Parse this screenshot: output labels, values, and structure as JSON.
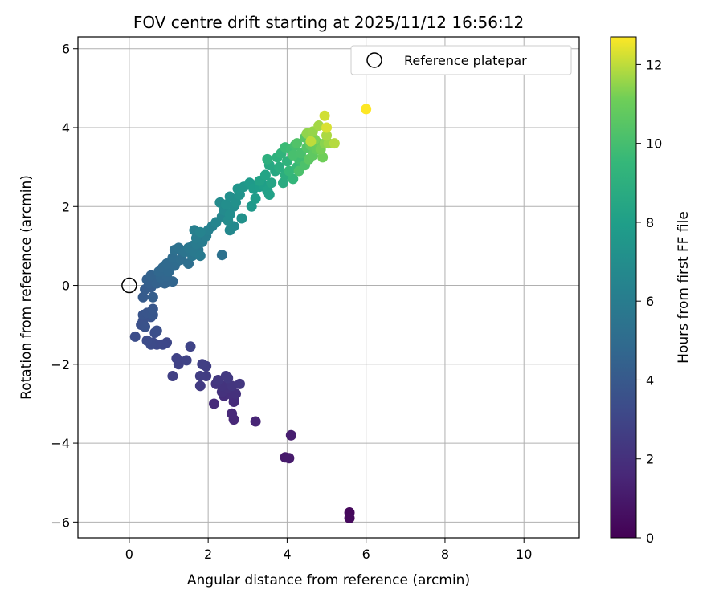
{
  "chart_data": {
    "type": "scatter",
    "title": "FOV centre drift starting at 2025/11/12 16:56:12",
    "xlabel": "Angular distance from reference (arcmin)",
    "ylabel": "Rotation from reference (arcmin)",
    "xlim": [
      -1.3,
      11.4
    ],
    "ylim": [
      -6.4,
      6.3
    ],
    "xticks": [
      0,
      2,
      4,
      6,
      8,
      10
    ],
    "yticks": [
      -6,
      -4,
      -2,
      0,
      2,
      4,
      6
    ],
    "grid": true,
    "legend": {
      "placement": "top-right",
      "entries": [
        "Reference platepar"
      ]
    },
    "reference_point": {
      "x": 0,
      "y": 0,
      "name": "Reference platepar"
    },
    "colorbar": {
      "label": "Hours from first FF file",
      "colormap": "viridis",
      "range": [
        0,
        12.7
      ],
      "ticks": [
        0,
        2,
        4,
        6,
        8,
        10,
        12
      ]
    },
    "series": [
      {
        "points": [
          [
            5.58,
            -5.76,
            0.3
          ],
          [
            5.58,
            -5.9,
            0.35
          ],
          [
            3.95,
            -4.36,
            1.0
          ],
          [
            4.05,
            -4.38,
            1.05
          ],
          [
            4.1,
            -3.8,
            1.2
          ],
          [
            3.2,
            -3.45,
            1.5
          ],
          [
            2.65,
            -3.4,
            1.6
          ],
          [
            2.6,
            -3.25,
            1.65
          ],
          [
            2.15,
            -3.0,
            1.75
          ],
          [
            2.65,
            -2.95,
            1.8
          ],
          [
            2.65,
            -2.85,
            1.85
          ],
          [
            2.4,
            -2.8,
            1.9
          ],
          [
            2.55,
            -2.75,
            1.95
          ],
          [
            2.7,
            -2.75,
            2.0
          ],
          [
            2.35,
            -2.7,
            2.05
          ],
          [
            2.5,
            -2.6,
            2.1
          ],
          [
            2.35,
            -2.55,
            2.15
          ],
          [
            2.2,
            -2.5,
            2.2
          ],
          [
            2.6,
            -2.55,
            2.25
          ],
          [
            2.8,
            -2.5,
            2.3
          ],
          [
            2.25,
            -2.4,
            2.35
          ],
          [
            2.5,
            -2.35,
            2.4
          ],
          [
            2.45,
            -2.3,
            2.45
          ],
          [
            1.8,
            -2.55,
            2.5
          ],
          [
            1.95,
            -2.3,
            2.55
          ],
          [
            1.8,
            -2.3,
            2.6
          ],
          [
            1.95,
            -2.05,
            2.65
          ],
          [
            1.85,
            -2.0,
            2.7
          ],
          [
            1.1,
            -2.3,
            2.75
          ],
          [
            1.25,
            -2.0,
            2.8
          ],
          [
            1.2,
            -1.85,
            2.85
          ],
          [
            1.45,
            -1.9,
            2.9
          ],
          [
            1.55,
            -1.55,
            2.95
          ],
          [
            0.95,
            -1.45,
            3.1
          ],
          [
            0.85,
            -1.5,
            3.15
          ],
          [
            0.7,
            -1.5,
            3.2
          ],
          [
            0.6,
            -1.45,
            3.25
          ],
          [
            0.55,
            -1.5,
            3.3
          ],
          [
            0.45,
            -1.4,
            3.35
          ],
          [
            0.15,
            -1.3,
            3.4
          ],
          [
            0.65,
            -1.2,
            3.45
          ],
          [
            0.7,
            -1.15,
            3.5
          ],
          [
            0.3,
            -1.0,
            3.55
          ],
          [
            0.35,
            -0.9,
            3.6
          ],
          [
            0.4,
            -1.05,
            3.65
          ],
          [
            0.55,
            -0.8,
            3.7
          ],
          [
            0.35,
            -0.75,
            3.75
          ],
          [
            0.45,
            -0.7,
            3.8
          ],
          [
            0.6,
            -0.75,
            3.85
          ],
          [
            0.6,
            -0.6,
            3.9
          ],
          [
            0.35,
            -0.3,
            4.1
          ],
          [
            0.4,
            -0.1,
            4.15
          ],
          [
            0.55,
            -0.05,
            4.2
          ],
          [
            0.6,
            -0.3,
            4.25
          ],
          [
            0.5,
            0.05,
            4.3
          ],
          [
            0.45,
            0.15,
            4.35
          ],
          [
            0.65,
            0.1,
            4.4
          ],
          [
            0.7,
            0.05,
            4.45
          ],
          [
            0.55,
            0.25,
            4.5
          ],
          [
            0.9,
            0.05,
            4.55
          ],
          [
            1.1,
            0.1,
            4.6
          ],
          [
            0.8,
            0.2,
            4.65
          ],
          [
            0.95,
            0.25,
            4.7
          ],
          [
            0.75,
            0.35,
            4.75
          ],
          [
            0.85,
            0.45,
            4.8
          ],
          [
            1.0,
            0.35,
            4.85
          ],
          [
            0.95,
            0.55,
            4.9
          ],
          [
            1.15,
            0.5,
            4.95
          ],
          [
            1.2,
            0.6,
            5.0
          ],
          [
            1.1,
            0.7,
            5.05
          ],
          [
            1.3,
            0.65,
            5.1
          ],
          [
            1.35,
            0.8,
            5.15
          ],
          [
            1.5,
            0.55,
            5.2
          ],
          [
            1.15,
            0.9,
            5.25
          ],
          [
            2.35,
            0.77,
            5.3
          ],
          [
            1.25,
            0.95,
            5.4
          ],
          [
            1.4,
            0.85,
            5.5
          ],
          [
            1.6,
            0.75,
            5.6
          ],
          [
            1.5,
            0.95,
            5.65
          ],
          [
            1.75,
            0.9,
            5.7
          ],
          [
            1.6,
            1.0,
            5.75
          ],
          [
            1.65,
            0.85,
            5.8
          ],
          [
            1.8,
            0.75,
            5.85
          ],
          [
            1.7,
            1.05,
            5.9
          ],
          [
            1.85,
            1.1,
            6.0
          ],
          [
            1.7,
            1.2,
            6.05
          ],
          [
            1.95,
            1.25,
            6.1
          ],
          [
            1.65,
            1.4,
            6.15
          ],
          [
            2.0,
            1.4,
            6.2
          ],
          [
            2.1,
            1.5,
            6.3
          ],
          [
            1.8,
            1.35,
            6.4
          ],
          [
            2.2,
            1.6,
            6.5
          ],
          [
            2.35,
            1.75,
            6.6
          ],
          [
            2.55,
            1.4,
            6.7
          ],
          [
            2.65,
            1.5,
            6.75
          ],
          [
            2.4,
            1.9,
            6.8
          ],
          [
            2.3,
            2.1,
            6.85
          ],
          [
            2.5,
            1.65,
            6.9
          ],
          [
            2.55,
            1.8,
            6.95
          ],
          [
            2.65,
            2.0,
            7.0
          ],
          [
            2.45,
            2.05,
            7.05
          ],
          [
            2.55,
            2.25,
            7.1
          ],
          [
            2.7,
            2.1,
            7.15
          ],
          [
            2.85,
            1.7,
            7.2
          ],
          [
            2.8,
            2.3,
            7.3
          ],
          [
            2.75,
            2.45,
            7.4
          ],
          [
            2.9,
            2.5,
            7.5
          ],
          [
            3.1,
            2.0,
            7.6
          ],
          [
            3.05,
            2.6,
            7.7
          ],
          [
            3.2,
            2.2,
            7.8
          ],
          [
            3.15,
            2.45,
            7.85
          ],
          [
            3.3,
            2.5,
            7.9
          ],
          [
            3.4,
            2.55,
            8.0
          ],
          [
            3.5,
            2.4,
            8.1
          ],
          [
            3.55,
            2.3,
            8.15
          ],
          [
            3.3,
            2.65,
            8.2
          ],
          [
            3.45,
            2.8,
            8.3
          ],
          [
            3.6,
            2.6,
            8.35
          ],
          [
            3.7,
            2.9,
            8.5
          ],
          [
            3.55,
            3.05,
            8.6
          ],
          [
            3.9,
            2.6,
            8.7
          ],
          [
            3.8,
            3.0,
            8.8
          ],
          [
            3.95,
            2.8,
            8.9
          ],
          [
            3.5,
            3.2,
            9.0
          ],
          [
            3.75,
            3.25,
            9.1
          ],
          [
            4.0,
            3.15,
            9.2
          ],
          [
            3.85,
            3.35,
            9.3
          ],
          [
            4.15,
            2.7,
            9.4
          ],
          [
            4.05,
            2.9,
            9.5
          ],
          [
            4.25,
            3.0,
            9.6
          ],
          [
            3.95,
            3.5,
            9.7
          ],
          [
            4.1,
            3.45,
            9.8
          ],
          [
            4.3,
            3.2,
            9.9
          ],
          [
            4.2,
            3.55,
            10.0
          ],
          [
            4.15,
            3.3,
            10.05
          ],
          [
            4.35,
            3.35,
            10.1
          ],
          [
            4.3,
            2.9,
            10.15
          ],
          [
            4.45,
            3.05,
            10.2
          ],
          [
            4.25,
            3.6,
            10.3
          ],
          [
            4.5,
            3.5,
            10.4
          ],
          [
            4.45,
            3.75,
            10.5
          ],
          [
            4.55,
            3.2,
            10.6
          ],
          [
            4.65,
            3.3,
            10.7
          ],
          [
            4.6,
            3.55,
            10.8
          ],
          [
            4.75,
            3.45,
            10.9
          ],
          [
            4.8,
            3.6,
            11.0
          ],
          [
            4.9,
            3.25,
            11.1
          ],
          [
            4.85,
            3.45,
            11.2
          ],
          [
            4.7,
            3.7,
            11.3
          ],
          [
            4.95,
            3.6,
            11.4
          ],
          [
            4.5,
            3.85,
            11.5
          ],
          [
            4.65,
            3.9,
            11.55
          ],
          [
            5.05,
            3.6,
            11.6
          ],
          [
            4.8,
            4.05,
            11.7
          ],
          [
            5.0,
            3.8,
            11.8
          ],
          [
            5.2,
            3.6,
            11.9
          ],
          [
            4.6,
            3.65,
            12.0
          ],
          [
            4.95,
            4.3,
            12.2
          ],
          [
            5.0,
            4.0,
            12.3
          ],
          [
            6.0,
            4.47,
            12.7
          ]
        ]
      }
    ]
  }
}
